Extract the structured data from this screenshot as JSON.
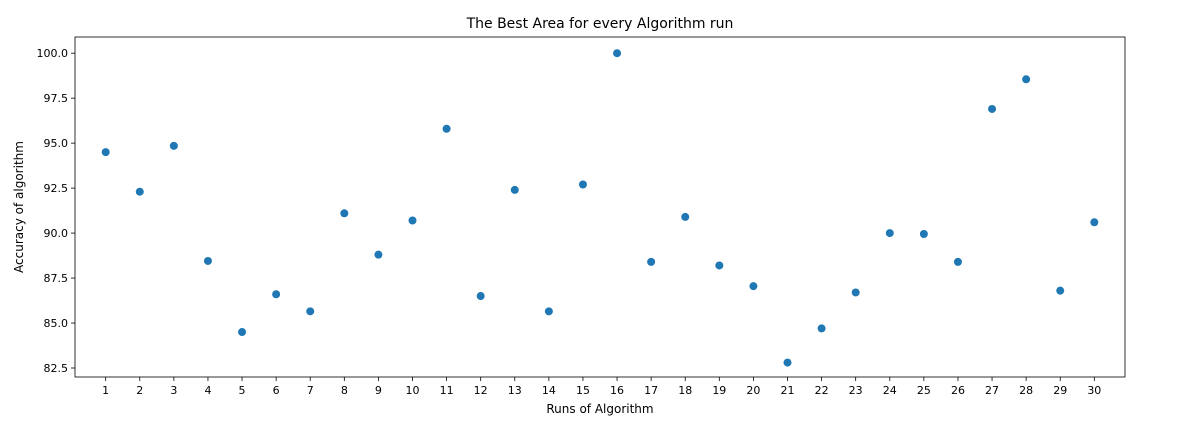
{
  "chart_data": {
    "type": "scatter",
    "title": "The Best Area for every Algorithm run",
    "xlabel": "Runs of Algorithm",
    "ylabel": "Accuracy of algorithm",
    "xlim": [
      0.1,
      30.9
    ],
    "ylim": [
      82.0,
      100.9
    ],
    "xticks": [
      1,
      2,
      3,
      4,
      5,
      6,
      7,
      8,
      9,
      10,
      11,
      12,
      13,
      14,
      15,
      16,
      17,
      18,
      19,
      20,
      21,
      22,
      23,
      24,
      25,
      26,
      27,
      28,
      29,
      30
    ],
    "yticks": [
      82.5,
      85.0,
      87.5,
      90.0,
      92.5,
      95.0,
      97.5,
      100.0
    ],
    "ytick_labels": [
      "82.5",
      "85.0",
      "87.5",
      "90.0",
      "92.5",
      "95.0",
      "97.5",
      "100.0"
    ],
    "marker_color": "#1f77b4",
    "grid": false,
    "x": [
      1,
      2,
      3,
      4,
      5,
      6,
      7,
      8,
      9,
      10,
      11,
      12,
      13,
      14,
      15,
      16,
      17,
      18,
      19,
      20,
      21,
      22,
      23,
      24,
      25,
      26,
      27,
      28,
      29,
      30
    ],
    "y": [
      94.5,
      92.3,
      94.85,
      88.45,
      84.5,
      86.6,
      85.65,
      91.1,
      88.8,
      90.7,
      95.8,
      86.5,
      92.4,
      85.65,
      92.7,
      100.0,
      88.4,
      90.9,
      88.2,
      87.05,
      82.8,
      84.7,
      86.7,
      90.0,
      89.95,
      88.4,
      96.9,
      98.55,
      86.8,
      90.6
    ]
  }
}
